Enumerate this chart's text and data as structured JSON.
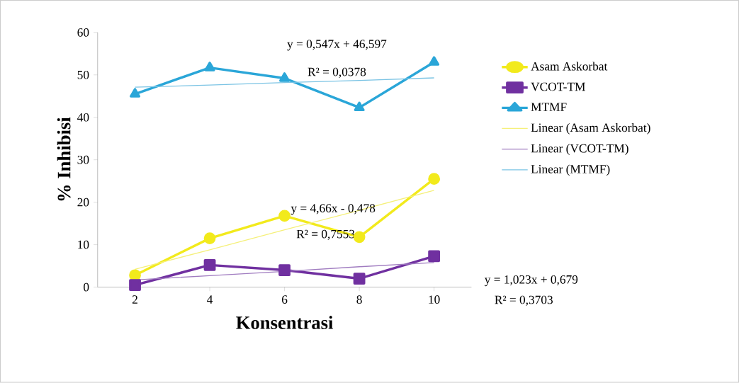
{
  "chart_data": {
    "type": "line",
    "xlabel": "Konsentrasi",
    "ylabel": "% Inhibisi",
    "x": [
      2,
      4,
      6,
      8,
      10
    ],
    "xlim": [
      1,
      11
    ],
    "xticks": [
      2,
      4,
      6,
      8,
      10
    ],
    "ylim": [
      0,
      60
    ],
    "yticks": [
      0,
      10,
      20,
      30,
      40,
      50,
      60
    ],
    "grid": false,
    "legend": "right",
    "line_style": "solid",
    "series": [
      {
        "name": "Asam Askorbat",
        "color": "#f2ea1c",
        "marker": "circle",
        "values": [
          2.8,
          11.5,
          16.8,
          11.8,
          25.5
        ]
      },
      {
        "name": "VCOT-TM",
        "color": "#7030a0",
        "marker": "square",
        "values": [
          0.5,
          5.2,
          4.0,
          2.0,
          7.3
        ]
      },
      {
        "name": "MTMF",
        "color": "#2aa6d8",
        "marker": "triangle",
        "values": [
          45.5,
          51.7,
          49.2,
          42.3,
          53.0
        ]
      },
      {
        "name": "Linear (Asam Askorbat)",
        "color": "#f5f07a",
        "marker": "none",
        "values": [
          4.2,
          8.8,
          13.5,
          18.1,
          22.8
        ]
      },
      {
        "name": "Linear (VCOT-TM)",
        "color": "#a07cc0",
        "marker": "none",
        "values": [
          1.7,
          2.7,
          3.7,
          4.8,
          5.8
        ]
      },
      {
        "name": "Linear (MTMF)",
        "color": "#7cc4e4",
        "marker": "none",
        "values": [
          47.1,
          47.6,
          48.2,
          48.7,
          49.3
        ]
      }
    ],
    "annotations": [
      "y = 0,547x + 46,597",
      "R² = 0,0378",
      "y = 4,66x - 0,478",
      "R² = 0,7553",
      "y = 1,023x + 0,679",
      "R² = 0,3703"
    ]
  }
}
